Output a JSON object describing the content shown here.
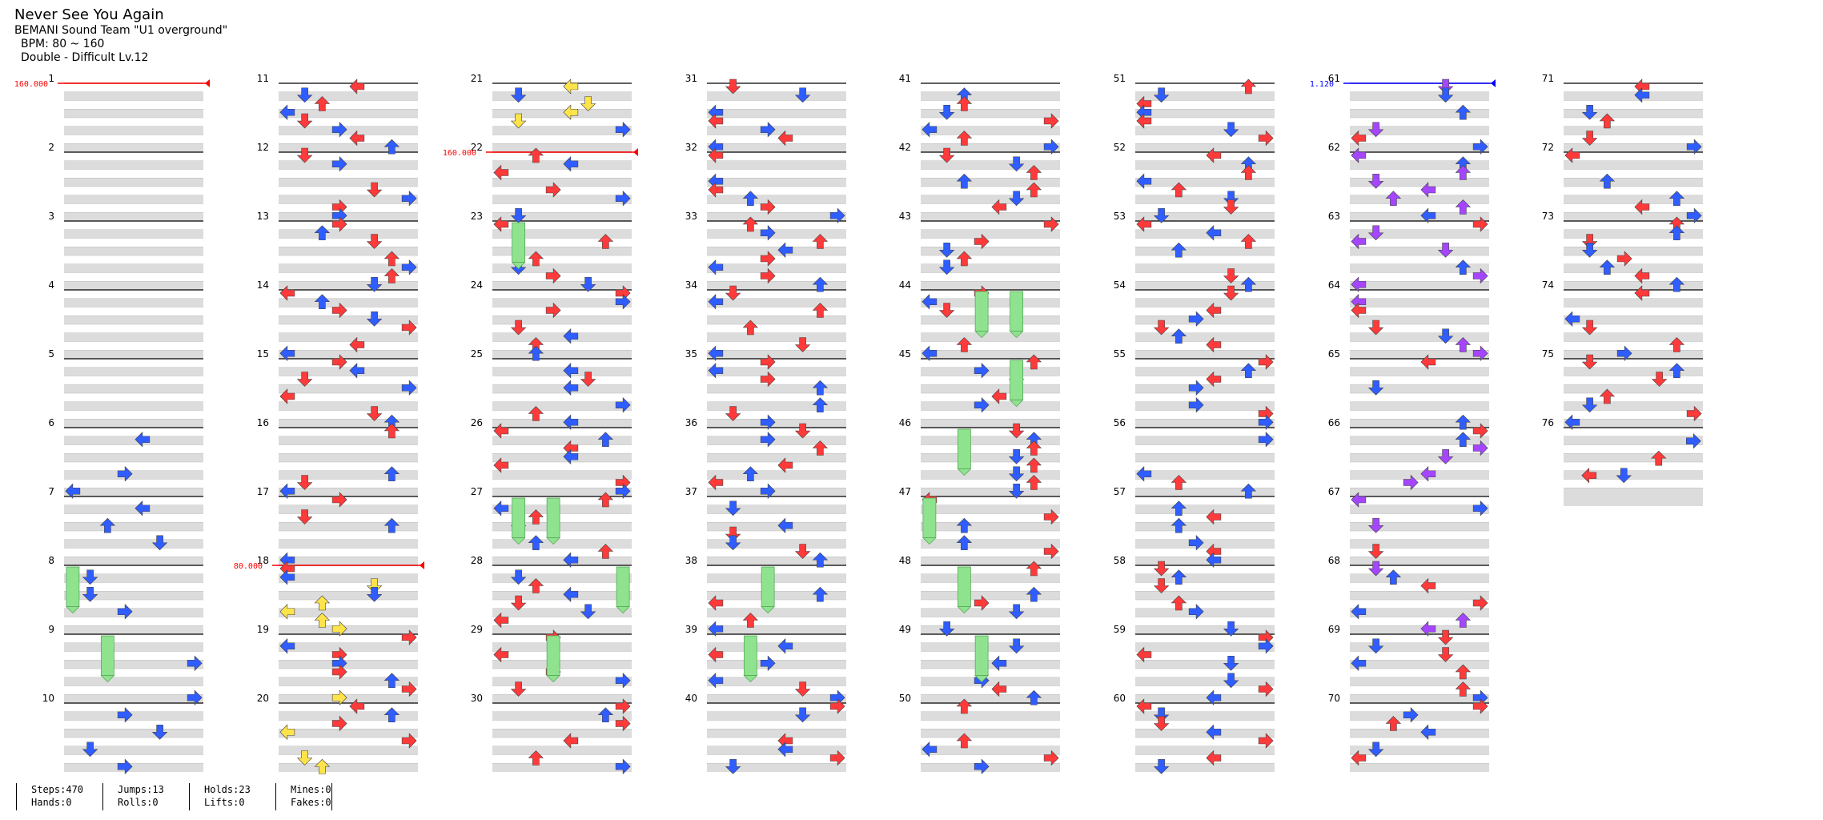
{
  "song": {
    "title": "Never See You Again",
    "artist": "BEMANI Sound Team \"U1 overground\"",
    "bpm": "BPM: 80 ~ 160",
    "chart": "Double - Difficult Lv.12"
  },
  "colors": {
    "red": "#ff3a3a",
    "blue": "#2f5dff",
    "purple": "#a545ff",
    "yellow": "#ffe34a",
    "hold": "#8fe38f",
    "bpm_marker": "#ff0000",
    "speed_marker": "#0000ff"
  },
  "measures": [
    "1",
    "2",
    "3",
    "4",
    "5",
    "6",
    "7",
    "8",
    "9",
    "10",
    "11",
    "12",
    "13",
    "14",
    "15",
    "16",
    "17",
    "18",
    "19",
    "20",
    "21",
    "22",
    "23",
    "24",
    "25",
    "26",
    "27",
    "28",
    "29",
    "30",
    "31",
    "32",
    "33",
    "34",
    "35",
    "36",
    "37",
    "38",
    "39",
    "40",
    "41",
    "42",
    "43",
    "44",
    "45",
    "46",
    "47",
    "48",
    "49",
    "50",
    "51",
    "52",
    "53",
    "54",
    "55",
    "56",
    "57",
    "58",
    "59",
    "60",
    "61",
    "62",
    "63",
    "64",
    "65",
    "66",
    "67",
    "68",
    "69",
    "70",
    "71",
    "72",
    "73",
    "74",
    "75",
    "76"
  ],
  "markers": [
    {
      "measure": 1,
      "label": "160.000",
      "kind": "bpm"
    },
    {
      "measure": 18,
      "label": "80.000",
      "kind": "bpm"
    },
    {
      "measure": 22,
      "label": "160.000",
      "kind": "bpm"
    },
    {
      "measure": 61,
      "label": "1.120",
      "kind": "speed"
    }
  ],
  "stats": {
    "steps": "Steps:470",
    "hands": "Hands:0",
    "jumps": "Jumps:13",
    "rolls": "Rolls:0",
    "holds": "Holds:23",
    "lifts": "Lifts:0",
    "mines": "Mines:0",
    "fakes": "Fakes:0"
  }
}
